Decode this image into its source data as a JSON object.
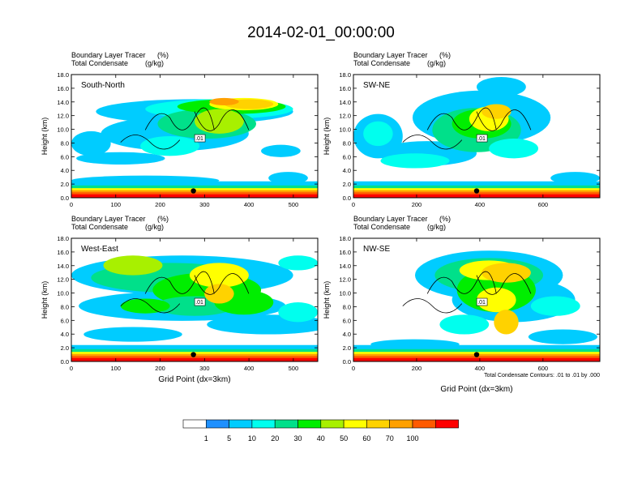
{
  "page": {
    "title": "2014-02-01_00:00:00"
  },
  "common": {
    "top_left_label": "Boundary Layer Tracer",
    "top_right_label": "(%)",
    "second_left_label": "Total Condensate",
    "second_right_label": "(g/kg)",
    "ylabel": "Height (km)",
    "xlabel": "Grid Point (dx=3km)",
    "contour_note": "Total Condensate Contours: .01 to .01 by .000",
    "contour_label": ".01"
  },
  "colorbar": {
    "labels": [
      "1",
      "5",
      "10",
      "20",
      "30",
      "40",
      "50",
      "60",
      "70",
      "100"
    ],
    "colors": [
      "#ffffff",
      "#1e90ff",
      "#00ccff",
      "#00ffee",
      "#00e08a",
      "#00ee00",
      "#a8f000",
      "#ffff00",
      "#ffd200",
      "#ffa000",
      "#ff5a00",
      "#ff0000"
    ]
  },
  "chart_data": [
    {
      "type": "heatmap",
      "name": "South-North",
      "xlim": [
        0,
        555
      ],
      "ylim": [
        0,
        18
      ],
      "xticks": [
        0,
        100,
        200,
        300,
        400,
        500
      ],
      "yticks": [
        "0.0",
        "2.0",
        "4.0",
        "6.0",
        "8.0",
        "10.0",
        "12.0",
        "14.0",
        "16.0",
        "18.0"
      ],
      "marker": {
        "x": 275,
        "y": 1.0
      }
    },
    {
      "type": "heatmap",
      "name": "SW-NE",
      "xlim": [
        0,
        780
      ],
      "ylim": [
        0,
        18
      ],
      "xticks": [
        0,
        200,
        400,
        600
      ],
      "yticks": [
        "0.0",
        "2.0",
        "4.0",
        "6.0",
        "8.0",
        "10.0",
        "12.0",
        "14.0",
        "16.0",
        "18.0"
      ],
      "marker": {
        "x": 390,
        "y": 1.0
      }
    },
    {
      "type": "heatmap",
      "name": "West-East",
      "xlim": [
        0,
        555
      ],
      "ylim": [
        0,
        18
      ],
      "xticks": [
        0,
        100,
        200,
        300,
        400,
        500
      ],
      "yticks": [
        "0.0",
        "2.0",
        "4.0",
        "6.0",
        "8.0",
        "10.0",
        "12.0",
        "14.0",
        "16.0",
        "18.0"
      ],
      "marker": {
        "x": 275,
        "y": 1.0
      }
    },
    {
      "type": "heatmap",
      "name": "NW-SE",
      "xlim": [
        0,
        780
      ],
      "ylim": [
        0,
        18
      ],
      "xticks": [
        0,
        200,
        400,
        600
      ],
      "yticks": [
        "0.0",
        "2.0",
        "4.0",
        "6.0",
        "8.0",
        "10.0",
        "12.0",
        "14.0",
        "16.0",
        "18.0"
      ],
      "marker": {
        "x": 390,
        "y": 1.0
      }
    }
  ]
}
